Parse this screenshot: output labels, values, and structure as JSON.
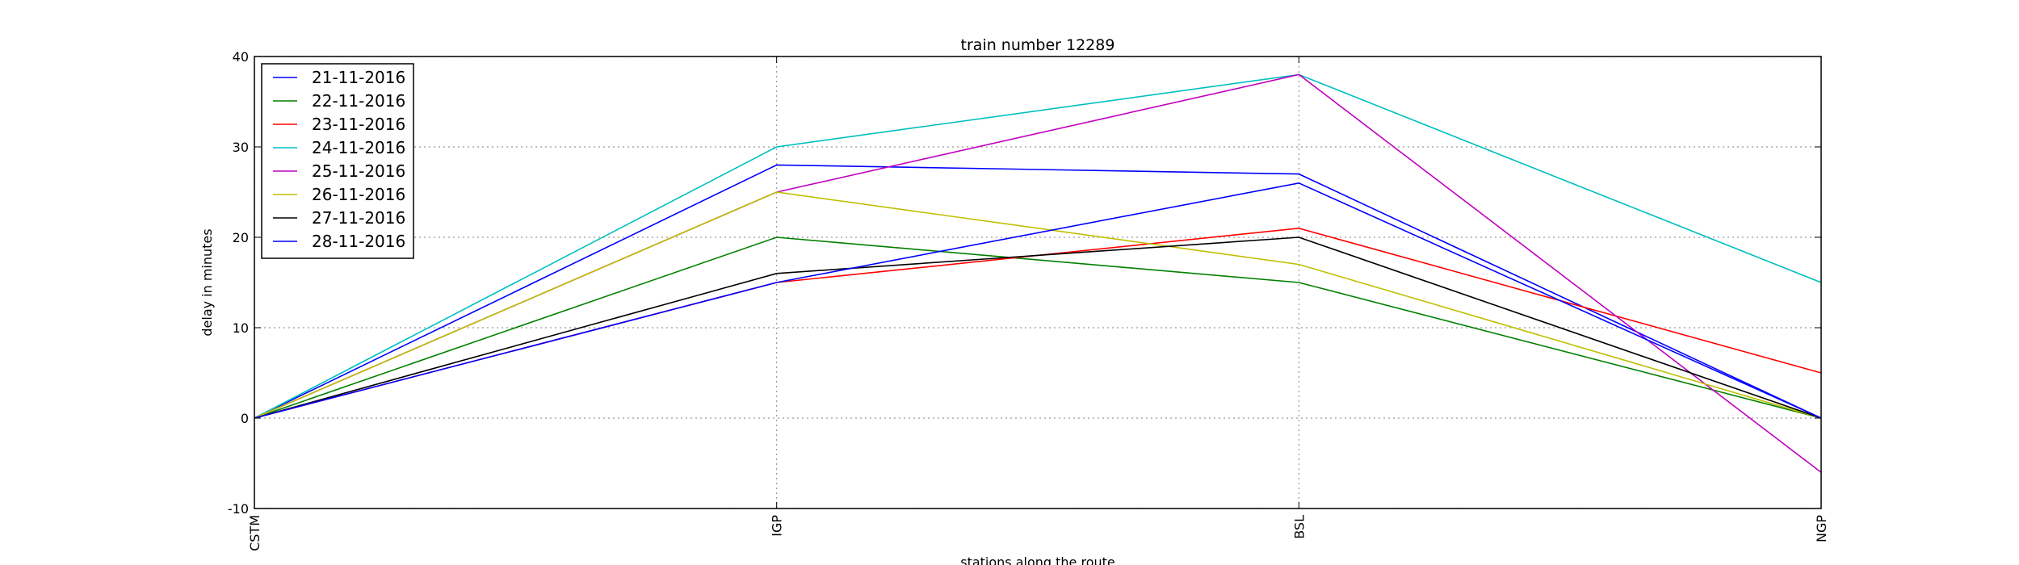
{
  "chart_data": {
    "type": "line",
    "title": "train number 12289",
    "xlabel": "stations along the route",
    "ylabel": "delay in minutes",
    "categories": [
      "CSTM",
      "IGP",
      "BSL",
      "NGP"
    ],
    "ylim": [
      -10,
      40
    ],
    "yticks": [
      -10,
      0,
      10,
      20,
      30,
      40
    ],
    "grid": true,
    "legend_position": "top-left",
    "series": [
      {
        "name": "21-11-2016",
        "color": "#0000ff",
        "values": [
          0,
          28,
          27,
          0
        ]
      },
      {
        "name": "22-11-2016",
        "color": "#008000",
        "values": [
          0,
          20,
          15,
          0
        ]
      },
      {
        "name": "23-11-2016",
        "color": "#ff0000",
        "values": [
          0,
          15,
          21,
          5
        ]
      },
      {
        "name": "24-11-2016",
        "color": "#00bfbf",
        "values": [
          0,
          30,
          38,
          15
        ]
      },
      {
        "name": "25-11-2016",
        "color": "#bf00bf",
        "values": [
          0,
          25,
          38,
          -6
        ]
      },
      {
        "name": "26-11-2016",
        "color": "#bfbf00",
        "values": [
          0,
          25,
          17,
          0
        ]
      },
      {
        "name": "27-11-2016",
        "color": "#000000",
        "values": [
          0,
          16,
          20,
          0
        ]
      },
      {
        "name": "28-11-2016",
        "color": "#0000ff",
        "values": [
          0,
          15,
          26,
          0
        ]
      }
    ]
  }
}
